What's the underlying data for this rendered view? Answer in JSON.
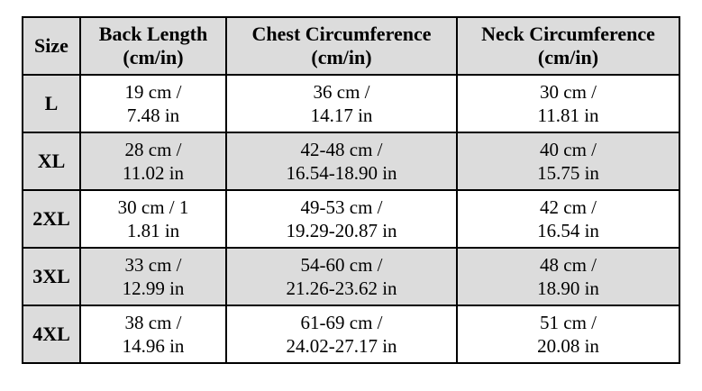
{
  "table": {
    "header": {
      "size": "Size",
      "back": {
        "line1": "Back Length",
        "line2": "(cm/in)"
      },
      "chest": {
        "line1": "Chest Circumference",
        "line2": "(cm/in)"
      },
      "neck": {
        "line1": "Neck Circumference",
        "line2": "(cm/in)"
      }
    },
    "rows": [
      {
        "size": "L",
        "back1": "19 cm /",
        "back2": "7.48 in",
        "chest1": "36 cm /",
        "chest2": "14.17 in",
        "neck1": "30 cm /",
        "neck2": "11.81 in"
      },
      {
        "size": "XL",
        "back1": "28 cm /",
        "back2": "11.02 in",
        "chest1": "42-48 cm /",
        "chest2": "16.54-18.90 in",
        "neck1": "40 cm /",
        "neck2": "15.75 in"
      },
      {
        "size": "2XL",
        "back1": "30 cm / 1",
        "back2": "1.81 in",
        "chest1": "49-53 cm /",
        "chest2": "19.29-20.87 in",
        "neck1": "42 cm /",
        "neck2": "16.54 in"
      },
      {
        "size": "3XL",
        "back1": "33 cm /",
        "back2": "12.99 in",
        "chest1": "54-60 cm /",
        "chest2": "21.26-23.62 in",
        "neck1": "48 cm /",
        "neck2": "18.90 in"
      },
      {
        "size": "4XL",
        "back1": "38 cm /",
        "back2": "14.96 in",
        "chest1": "61-69 cm /",
        "chest2": "24.02-27.17 in",
        "neck1": "51 cm /",
        "neck2": "20.08 in"
      }
    ]
  },
  "colors": {
    "shaded_bg": "#dcdcdc",
    "border": "#000000",
    "text": "#000000",
    "page_bg": "#ffffff"
  },
  "chart_data": {
    "type": "table",
    "columns": [
      "Size",
      "Back Length (cm/in)",
      "Chest Circumference (cm/in)",
      "Neck Circumference (cm/in)"
    ],
    "rows": [
      [
        "L",
        "19 cm / 7.48 in",
        "36 cm / 14.17 in",
        "30 cm / 11.81 in"
      ],
      [
        "XL",
        "28 cm / 11.02 in",
        "42-48 cm / 16.54-18.90 in",
        "40 cm / 15.75 in"
      ],
      [
        "2XL",
        "30 cm / 11.81 in",
        "49-53 cm / 19.29-20.87 in",
        "42 cm / 16.54 in"
      ],
      [
        "3XL",
        "33 cm / 12.99 in",
        "54-60 cm / 21.26-23.62 in",
        "48 cm / 18.90 in"
      ],
      [
        "4XL",
        "38 cm / 14.96 in",
        "61-69 cm / 24.02-27.17 in",
        "51 cm / 20.08 in"
      ]
    ],
    "title": "",
    "layout": {
      "header_shaded": true,
      "size_column_shaded": true,
      "shaded_data_rows": [
        "XL",
        "3XL"
      ],
      "grid": true
    }
  }
}
